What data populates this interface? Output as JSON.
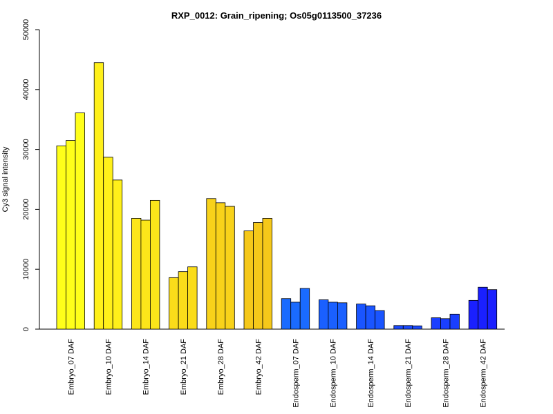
{
  "chart_data": {
    "type": "bar",
    "title": "RXP_0012: Grain_ripening; Os05g0113500_37236",
    "xlabel": "",
    "ylabel": "Cy3 signal intensity",
    "ylim": [
      0,
      50000
    ],
    "yticks": [
      0,
      10000,
      20000,
      30000,
      40000,
      50000
    ],
    "grid": false,
    "legend": "none",
    "categories": [
      "Embryo_07 DAF",
      "Embryo_10 DAF",
      "Embryo_14 DAF",
      "Embryo_21 DAF",
      "Embryo_28 DAF",
      "Embryo_42 DAF",
      "Endosperm_07 DAF",
      "Endosperm_10 DAF",
      "Endosperm_14 DAF",
      "Endosperm_21 DAF",
      "Endosperm_28 DAF",
      "Endosperm_42 DAF"
    ],
    "replicates": [
      [
        30600,
        31500,
        36100
      ],
      [
        44500,
        28700,
        24900
      ],
      [
        18500,
        18200,
        21500
      ],
      [
        8600,
        9600,
        10400
      ],
      [
        21800,
        21100,
        20500
      ],
      [
        16400,
        17800,
        18500
      ],
      [
        5100,
        4500,
        6800
      ],
      [
        4900,
        4500,
        4400
      ],
      [
        4200,
        3900,
        3100
      ],
      [
        600,
        600,
        550
      ],
      [
        1900,
        1750,
        2500
      ],
      [
        4800,
        7000,
        6600
      ]
    ],
    "colors": [
      "#FFFF1A",
      "#FFF01A",
      "#FCE61A",
      "#FADC1A",
      "#F8D21A",
      "#F5C81A",
      "#1A6BFF",
      "#1A60FF",
      "#1A55FF",
      "#1A4AFF",
      "#1A3FFF",
      "#1A20FF"
    ]
  }
}
